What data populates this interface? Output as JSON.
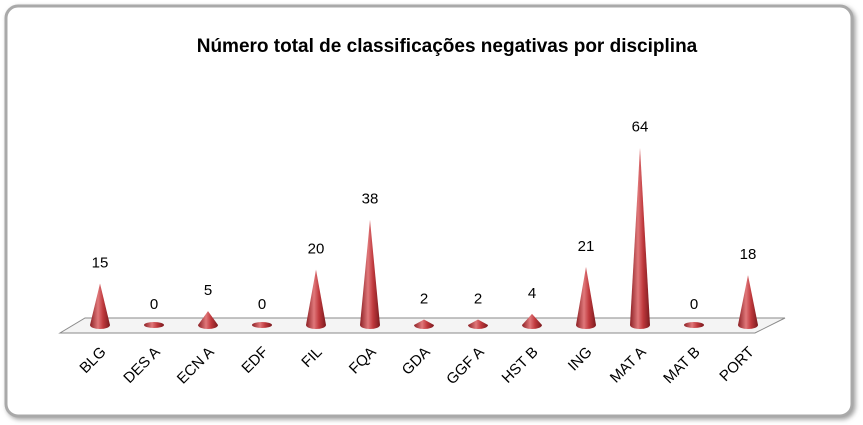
{
  "chart_data": {
    "type": "cone",
    "title": "Número total de classificações negativas por disciplina",
    "categories": [
      "BLG",
      "DES A",
      "ECN A",
      "EDF",
      "FIL",
      "FQA",
      "GDA",
      "GGF A",
      "HST B",
      "ING",
      "MAT A",
      "MAT B",
      "PORT"
    ],
    "values": [
      15,
      0,
      5,
      0,
      20,
      38,
      2,
      2,
      4,
      21,
      64,
      0,
      18
    ],
    "color": "#c0393d"
  }
}
